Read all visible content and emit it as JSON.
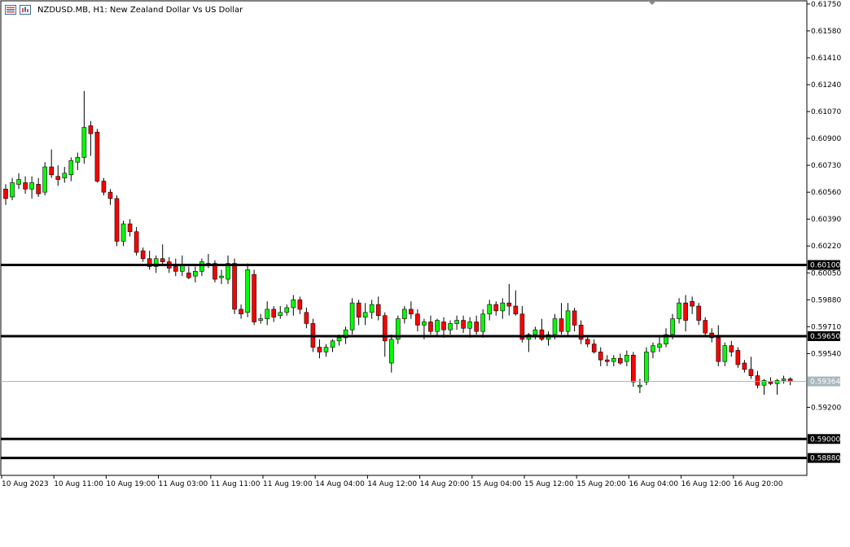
{
  "header": {
    "symbol": "NZDUSD.MB",
    "timeframe": "H1:",
    "description": "New Zealand Dollar Vs US Dollar"
  },
  "icons": [
    "bars-list-icon",
    "chart-properties-icon",
    "scroll-marker-icon"
  ],
  "colors": {
    "bull": "#00ff00",
    "bear": "#ff0000",
    "wick": "#000000",
    "current_line": "#9fb0b8",
    "current_tag": "#a9b7be",
    "level_line": "#000000",
    "frame": "#000000"
  },
  "chart_data": {
    "type": "candlestick",
    "y_axis": {
      "labels": [
        0.6175,
        0.6158,
        0.6141,
        0.6124,
        0.6107,
        0.609,
        0.6073,
        0.6056,
        0.6039,
        0.6022,
        0.6005,
        0.5988,
        0.5971,
        0.5954,
        0.592
      ],
      "range": [
        0.5877,
        0.6177
      ],
      "position": "right"
    },
    "x_axis": {
      "labels": [
        "10 Aug 2023",
        "10 Aug 11:00",
        "10 Aug 19:00",
        "11 Aug 03:00",
        "11 Aug 11:00",
        "11 Aug 19:00",
        "14 Aug 04:00",
        "14 Aug 12:00",
        "14 Aug 20:00",
        "15 Aug 04:00",
        "15 Aug 12:00",
        "15 Aug 20:00",
        "16 Aug 04:00",
        "16 Aug 12:00",
        "16 Aug 20:00"
      ]
    },
    "levels": [
      0.601,
      0.5965,
      0.59,
      0.5888
    ],
    "level_tags": [
      "0.60100",
      "0.59650",
      "0.59000",
      "0.58880"
    ],
    "current_price": 0.59364,
    "current_price_tag": "0.59364",
    "candles": [
      [
        0.6058,
        0.6061,
        0.6048,
        0.6052
      ],
      [
        0.6053,
        0.6065,
        0.6051,
        0.6062
      ],
      [
        0.6061,
        0.6068,
        0.6058,
        0.6064
      ],
      [
        0.6062,
        0.6066,
        0.6055,
        0.6058
      ],
      [
        0.6058,
        0.6066,
        0.6052,
        0.6062
      ],
      [
        0.6061,
        0.6065,
        0.6053,
        0.6055
      ],
      [
        0.6056,
        0.6075,
        0.6054,
        0.6072
      ],
      [
        0.6072,
        0.6083,
        0.6065,
        0.6067
      ],
      [
        0.6066,
        0.6073,
        0.606,
        0.6064
      ],
      [
        0.6065,
        0.6072,
        0.6062,
        0.6068
      ],
      [
        0.6067,
        0.6078,
        0.6063,
        0.6076
      ],
      [
        0.6075,
        0.6081,
        0.607,
        0.6078
      ],
      [
        0.6078,
        0.612,
        0.6074,
        0.6097
      ],
      [
        0.6098,
        0.6101,
        0.6079,
        0.6093
      ],
      [
        0.6094,
        0.6096,
        0.6062,
        0.6063
      ],
      [
        0.6063,
        0.6065,
        0.6054,
        0.6056
      ],
      [
        0.6056,
        0.6058,
        0.6048,
        0.6052
      ],
      [
        0.6052,
        0.6054,
        0.6022,
        0.6025
      ],
      [
        0.6025,
        0.6038,
        0.6022,
        0.6036
      ],
      [
        0.6036,
        0.6039,
        0.6028,
        0.6031
      ],
      [
        0.6031,
        0.6034,
        0.6016,
        0.6018
      ],
      [
        0.6019,
        0.6021,
        0.6012,
        0.6014
      ],
      [
        0.6014,
        0.6019,
        0.6007,
        0.6009
      ],
      [
        0.6009,
        0.6016,
        0.6005,
        0.6014
      ],
      [
        0.6014,
        0.6023,
        0.601,
        0.6012
      ],
      [
        0.6012,
        0.6015,
        0.6005,
        0.6008
      ],
      [
        0.6009,
        0.6014,
        0.6003,
        0.6006
      ],
      [
        0.6006,
        0.6016,
        0.6003,
        0.601
      ],
      [
        0.6005,
        0.6009,
        0.6001,
        0.6002
      ],
      [
        0.6003,
        0.6009,
        0.5999,
        0.6006
      ],
      [
        0.6006,
        0.6014,
        0.6003,
        0.6012
      ],
      [
        0.6011,
        0.6017,
        0.6008,
        0.601
      ],
      [
        0.6011,
        0.6013,
        0.5999,
        0.6001
      ],
      [
        0.6002,
        0.6007,
        0.5998,
        0.6003
      ],
      [
        0.6001,
        0.6016,
        0.5998,
        0.6011
      ],
      [
        0.6011,
        0.6014,
        0.5979,
        0.5982
      ],
      [
        0.5982,
        0.5985,
        0.5976,
        0.5979
      ],
      [
        0.598,
        0.6011,
        0.5977,
        0.6007
      ],
      [
        0.6004,
        0.6007,
        0.5972,
        0.5974
      ],
      [
        0.5975,
        0.5979,
        0.5973,
        0.5976
      ],
      [
        0.5976,
        0.5987,
        0.5972,
        0.5982
      ],
      [
        0.5982,
        0.5984,
        0.5974,
        0.5977
      ],
      [
        0.5978,
        0.5984,
        0.5976,
        0.598
      ],
      [
        0.598,
        0.5985,
        0.5978,
        0.5983
      ],
      [
        0.5983,
        0.5991,
        0.5978,
        0.5988
      ],
      [
        0.5988,
        0.599,
        0.5979,
        0.5982
      ],
      [
        0.598,
        0.5983,
        0.597,
        0.5973
      ],
      [
        0.5973,
        0.5976,
        0.5955,
        0.5958
      ],
      [
        0.5958,
        0.5963,
        0.5951,
        0.5955
      ],
      [
        0.5955,
        0.596,
        0.5952,
        0.5958
      ],
      [
        0.5958,
        0.5963,
        0.5955,
        0.5962
      ],
      [
        0.5962,
        0.5966,
        0.5959,
        0.5964
      ],
      [
        0.5964,
        0.5971,
        0.596,
        0.5969
      ],
      [
        0.5969,
        0.5989,
        0.5966,
        0.5986
      ],
      [
        0.5986,
        0.5988,
        0.5972,
        0.5977
      ],
      [
        0.5977,
        0.5986,
        0.5972,
        0.598
      ],
      [
        0.598,
        0.5988,
        0.5976,
        0.5985
      ],
      [
        0.5985,
        0.599,
        0.5975,
        0.5978
      ],
      [
        0.5978,
        0.598,
        0.5952,
        0.5962
      ],
      [
        0.5948,
        0.5966,
        0.5942,
        0.5963
      ],
      [
        0.5963,
        0.5978,
        0.596,
        0.5976
      ],
      [
        0.5976,
        0.5984,
        0.5973,
        0.5982
      ],
      [
        0.5982,
        0.5987,
        0.5976,
        0.5979
      ],
      [
        0.5979,
        0.5982,
        0.5968,
        0.5972
      ],
      [
        0.5972,
        0.5976,
        0.5963,
        0.5974
      ],
      [
        0.5974,
        0.5978,
        0.5966,
        0.5968
      ],
      [
        0.5968,
        0.5976,
        0.5965,
        0.5975
      ],
      [
        0.5974,
        0.5977,
        0.5964,
        0.5969
      ],
      [
        0.5969,
        0.5975,
        0.5966,
        0.5973
      ],
      [
        0.5973,
        0.5978,
        0.5969,
        0.5975
      ],
      [
        0.5975,
        0.5978,
        0.5967,
        0.597
      ],
      [
        0.597,
        0.5977,
        0.5964,
        0.5974
      ],
      [
        0.5974,
        0.5978,
        0.5966,
        0.5968
      ],
      [
        0.5968,
        0.5982,
        0.5964,
        0.5979
      ],
      [
        0.5979,
        0.5988,
        0.5975,
        0.5985
      ],
      [
        0.5985,
        0.5987,
        0.5978,
        0.5981
      ],
      [
        0.5981,
        0.5989,
        0.5976,
        0.5986
      ],
      [
        0.5986,
        0.5998,
        0.5978,
        0.5984
      ],
      [
        0.5984,
        0.5994,
        0.5978,
        0.5979
      ],
      [
        0.5979,
        0.5984,
        0.5961,
        0.5963
      ],
      [
        0.5963,
        0.5967,
        0.5955,
        0.5966
      ],
      [
        0.5966,
        0.5971,
        0.5963,
        0.5969
      ],
      [
        0.5969,
        0.5976,
        0.5962,
        0.5963
      ],
      [
        0.5963,
        0.5968,
        0.5959,
        0.5966
      ],
      [
        0.5966,
        0.5979,
        0.5963,
        0.5976
      ],
      [
        0.5976,
        0.5986,
        0.5966,
        0.5968
      ],
      [
        0.5968,
        0.5986,
        0.5965,
        0.5981
      ],
      [
        0.5981,
        0.5983,
        0.5968,
        0.5972
      ],
      [
        0.5972,
        0.5975,
        0.596,
        0.5963
      ],
      [
        0.5963,
        0.5965,
        0.5958,
        0.596
      ],
      [
        0.596,
        0.5963,
        0.5954,
        0.5955
      ],
      [
        0.5955,
        0.5958,
        0.5946,
        0.595
      ],
      [
        0.595,
        0.5953,
        0.5946,
        0.5949
      ],
      [
        0.5949,
        0.5953,
        0.5946,
        0.5951
      ],
      [
        0.5951,
        0.5954,
        0.5947,
        0.5948
      ],
      [
        0.5949,
        0.5956,
        0.5946,
        0.5953
      ],
      [
        0.5953,
        0.5955,
        0.5933,
        0.5936
      ],
      [
        0.5933,
        0.5938,
        0.5929,
        0.5934
      ],
      [
        0.5936,
        0.5958,
        0.5934,
        0.5955
      ],
      [
        0.5955,
        0.5961,
        0.5951,
        0.5959
      ],
      [
        0.5958,
        0.5965,
        0.5955,
        0.596
      ],
      [
        0.596,
        0.597,
        0.5958,
        0.5966
      ],
      [
        0.5966,
        0.5979,
        0.5963,
        0.5976
      ],
      [
        0.5976,
        0.5989,
        0.5973,
        0.5986
      ],
      [
        0.5986,
        0.5991,
        0.5968,
        0.5975
      ],
      [
        0.5987,
        0.599,
        0.5979,
        0.5984
      ],
      [
        0.5984,
        0.5986,
        0.5972,
        0.5975
      ],
      [
        0.5975,
        0.5977,
        0.5965,
        0.5967
      ],
      [
        0.5967,
        0.597,
        0.5961,
        0.5964
      ],
      [
        0.5964,
        0.5972,
        0.5946,
        0.5949
      ],
      [
        0.5949,
        0.5961,
        0.5946,
        0.5959
      ],
      [
        0.5959,
        0.5962,
        0.5952,
        0.5955
      ],
      [
        0.5956,
        0.5958,
        0.5945,
        0.5947
      ],
      [
        0.5948,
        0.595,
        0.5942,
        0.5944
      ],
      [
        0.5944,
        0.5952,
        0.5938,
        0.594
      ],
      [
        0.594,
        0.5943,
        0.5932,
        0.5934
      ],
      [
        0.5934,
        0.5938,
        0.5928,
        0.5937
      ],
      [
        0.5936,
        0.5939,
        0.5934,
        0.5935
      ],
      [
        0.5935,
        0.5938,
        0.5928,
        0.5937
      ],
      [
        0.5937,
        0.594,
        0.5935,
        0.5938
      ],
      [
        0.5938,
        0.5939,
        0.5934,
        0.59364
      ]
    ]
  }
}
